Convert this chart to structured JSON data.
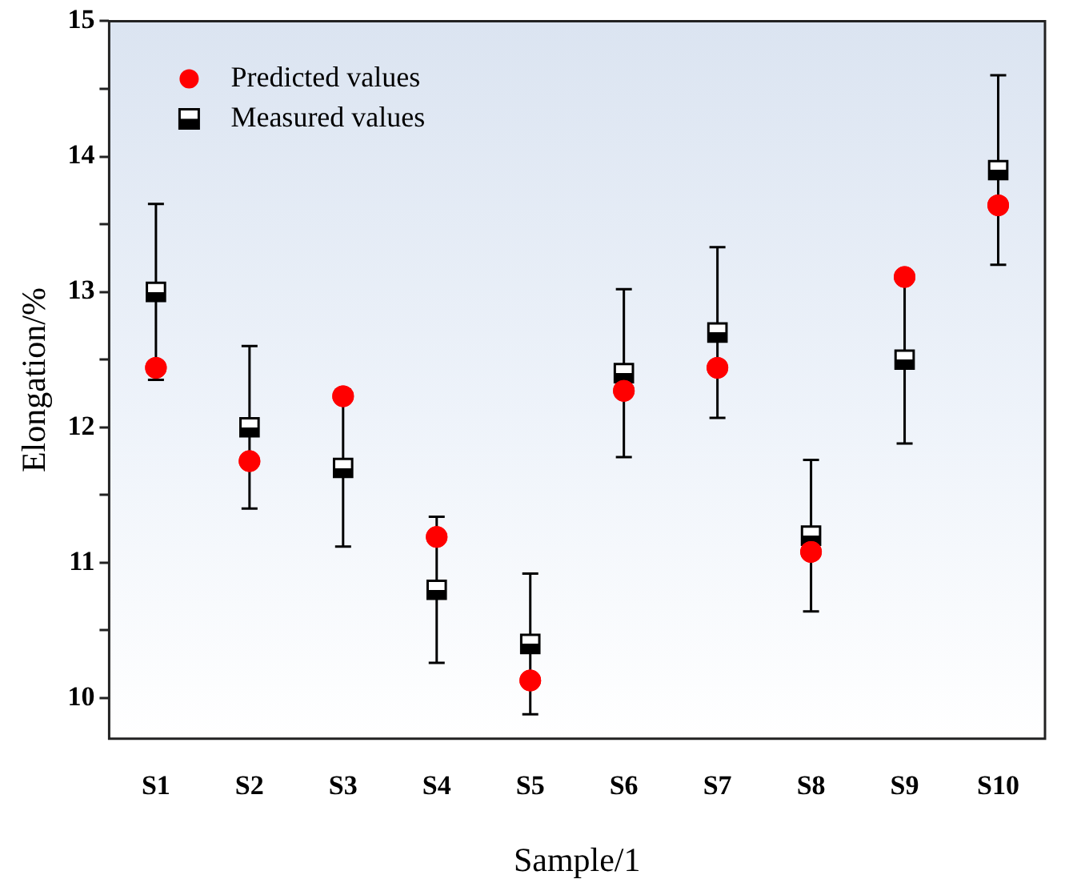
{
  "chart_data": {
    "type": "scatter",
    "xlabel": "Sample/1",
    "ylabel": "Elongation/%",
    "categories": [
      "S1",
      "S2",
      "S3",
      "S4",
      "S5",
      "S6",
      "S7",
      "S8",
      "S9",
      "S10"
    ],
    "series": [
      {
        "name": "Measured values",
        "color": "#000000",
        "marker": "square",
        "values": [
          13.0,
          12.0,
          11.7,
          10.8,
          10.4,
          12.4,
          12.7,
          11.2,
          12.5,
          13.9
        ],
        "errors": [
          0.65,
          0.6,
          0.58,
          0.54,
          0.52,
          0.62,
          0.63,
          0.56,
          0.62,
          0.7
        ]
      },
      {
        "name": "Predicted values",
        "color": "#ff0000",
        "marker": "circle",
        "values": [
          12.44,
          11.75,
          12.23,
          11.19,
          10.13,
          12.27,
          12.44,
          11.08,
          13.11,
          13.64
        ]
      }
    ],
    "ylim": [
      9.7,
      15
    ],
    "yticks": [
      10,
      {
        "value": 10.5,
        "label": null
      },
      11,
      {
        "value": 11.5,
        "label": null
      },
      12,
      {
        "value": 12.5,
        "label": null
      },
      13,
      {
        "value": 13.5,
        "label": null
      },
      14,
      {
        "value": 14.5,
        "label": null
      },
      15
    ],
    "grid": false,
    "legend": "top left"
  }
}
